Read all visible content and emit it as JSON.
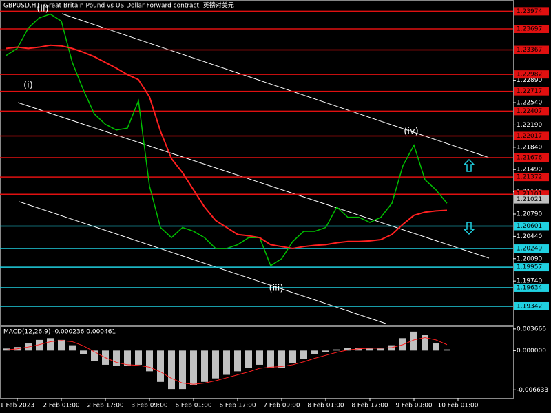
{
  "chart_data": [
    {
      "type": "line",
      "title": "GBPUSD,H1: Great Britain Pound vs US Dollar Forward contract, 英镑对美元",
      "categories": [
        null,
        "1 Feb 2023",
        null,
        null,
        null,
        "2 Feb 01:00",
        null,
        null,
        null,
        "2 Feb 17:00",
        null,
        null,
        null,
        "3 Feb 09:00",
        null,
        null,
        null,
        "6 Feb 01:00",
        null,
        null,
        null,
        "6 Feb 17:00",
        null,
        null,
        null,
        "7 Feb 09:00",
        null,
        null,
        null,
        "8 Feb 01:00",
        null,
        null,
        null,
        "8 Feb 17:00",
        null,
        null,
        null,
        "9 Feb 09:00",
        null,
        null,
        null,
        "10 Feb 01:00"
      ],
      "series": [
        {
          "color": "#00c000",
          "values": [
            1.2328,
            1.2339,
            1.2371,
            1.2387,
            1.2393,
            1.2382,
            1.2317,
            1.2274,
            1.2236,
            1.222,
            1.2211,
            1.2214,
            1.2257,
            1.2123,
            1.2058,
            1.2042,
            1.2058,
            1.2052,
            1.2042,
            1.2025,
            1.2025,
            1.2031,
            1.2042,
            1.2042,
            1.1998,
            1.2009,
            1.2036,
            1.2052,
            1.2052,
            1.2058,
            1.209,
            1.2074,
            1.2074,
            1.2066,
            1.2074,
            1.2096,
            1.2155,
            1.2187,
            1.2133,
            1.2117,
            1.2096,
            null
          ]
        },
        {
          "color": "#ff2020",
          "values": [
            1.2339,
            1.2341,
            1.2339,
            1.2341,
            1.2344,
            1.2343,
            1.2339,
            1.2333,
            1.2326,
            1.2317,
            1.2308,
            1.2298,
            1.229,
            1.2263,
            1.2209,
            1.2166,
            1.2144,
            1.2117,
            1.209,
            1.2069,
            1.2058,
            1.2047,
            1.2045,
            1.2042,
            1.2031,
            1.2028,
            1.2025,
            1.2028,
            1.203,
            1.2031,
            1.2034,
            1.2036,
            1.2036,
            1.2037,
            1.2039,
            1.2047,
            1.2063,
            1.2077,
            1.2082,
            1.2084,
            1.2085,
            null
          ]
        }
      ],
      "ylim": [
        1.1905,
        1.2414
      ],
      "yticks": [
        {
          "value": 1.2289,
          "label": "1.22890"
        },
        {
          "value": 1.2254,
          "label": "1.22540"
        },
        {
          "value": 1.2219,
          "label": "1.22190"
        },
        {
          "value": 1.2184,
          "label": "1.21840"
        },
        {
          "value": 1.2149,
          "label": "1.21490"
        },
        {
          "value": 1.2114,
          "label": "1.21140"
        },
        {
          "value": 1.2079,
          "label": "1.20790"
        },
        {
          "value": 1.2044,
          "label": "1.20440"
        },
        {
          "value": 1.2009,
          "label": "1.20090"
        },
        {
          "value": 1.1974,
          "label": "1.19740"
        }
      ],
      "levels": [
        {
          "value": 1.23974,
          "color": "#e01010"
        },
        {
          "value": 1.23697,
          "color": "#e01010"
        },
        {
          "value": 1.23367,
          "color": "#e01010"
        },
        {
          "value": 1.22982,
          "color": "#e01010"
        },
        {
          "value": 1.22717,
          "color": "#e01010"
        },
        {
          "value": 1.22407,
          "color": "#e01010"
        },
        {
          "value": 1.22017,
          "color": "#e01010"
        },
        {
          "value": 1.21676,
          "color": "#e01010"
        },
        {
          "value": 1.21372,
          "color": "#e01010"
        },
        {
          "value": 1.21101,
          "color": "#e01010"
        },
        {
          "value": 1.20601,
          "color": "#20d0e0"
        },
        {
          "value": 1.20249,
          "color": "#20d0e0"
        },
        {
          "value": 1.19957,
          "color": "#20d0e0"
        },
        {
          "value": 1.19634,
          "color": "#20d0e0"
        },
        {
          "value": 1.19342,
          "color": "#20d0e0"
        }
      ],
      "current_price": 1.21021,
      "annotations": [
        "(i)",
        "(ii)",
        "(iii)",
        "(iv)"
      ]
    },
    {
      "type": "macd",
      "title": "MACD(12,26,9) -0.000236 0.000461",
      "series": [
        {
          "kind": "bar",
          "color": "#c0c0c0",
          "values": [
            0.00035,
            0.0006,
            0.0012,
            0.0018,
            0.0021,
            0.0018,
            0.0009,
            -0.0006,
            -0.0018,
            -0.0024,
            -0.0026,
            -0.0026,
            -0.0024,
            -0.0035,
            -0.0053,
            -0.0065,
            -0.0065,
            -0.0059,
            -0.0053,
            -0.0047,
            -0.0041,
            -0.0035,
            -0.0029,
            -0.0024,
            -0.0029,
            -0.0029,
            -0.0021,
            -0.0014,
            -0.0006,
            -0.0002,
            0.0002,
            0.0005,
            0.0005,
            0.00035,
            0.00035,
            0.0009,
            0.0021,
            0.0032,
            0.0026,
            0.0012,
            0.0002,
            null
          ]
        },
        {
          "kind": "line",
          "color": "#ff2020",
          "values": [
            0.0001,
            0.0003,
            0.0006,
            0.001,
            0.0015,
            0.0017,
            0.0015,
            0.0008,
            -0.0002,
            -0.0012,
            -0.002,
            -0.0024,
            -0.0025,
            -0.0028,
            -0.0036,
            -0.0047,
            -0.0055,
            -0.0057,
            -0.0055,
            -0.0051,
            -0.0046,
            -0.0041,
            -0.0036,
            -0.003,
            -0.0028,
            -0.0027,
            -0.0024,
            -0.0019,
            -0.0013,
            -0.0008,
            -0.0003,
            0.0001,
            0.0003,
            0.0004,
            0.0004,
            0.0005,
            0.001,
            0.0018,
            0.0022,
            0.0018,
            0.001,
            null
          ]
        }
      ],
      "ylim": [
        -0.008,
        0.004
      ],
      "yticks": [
        0.003666,
        {
          "value": 0,
          "label": "0.000000"
        },
        -0.006633
      ]
    }
  ]
}
